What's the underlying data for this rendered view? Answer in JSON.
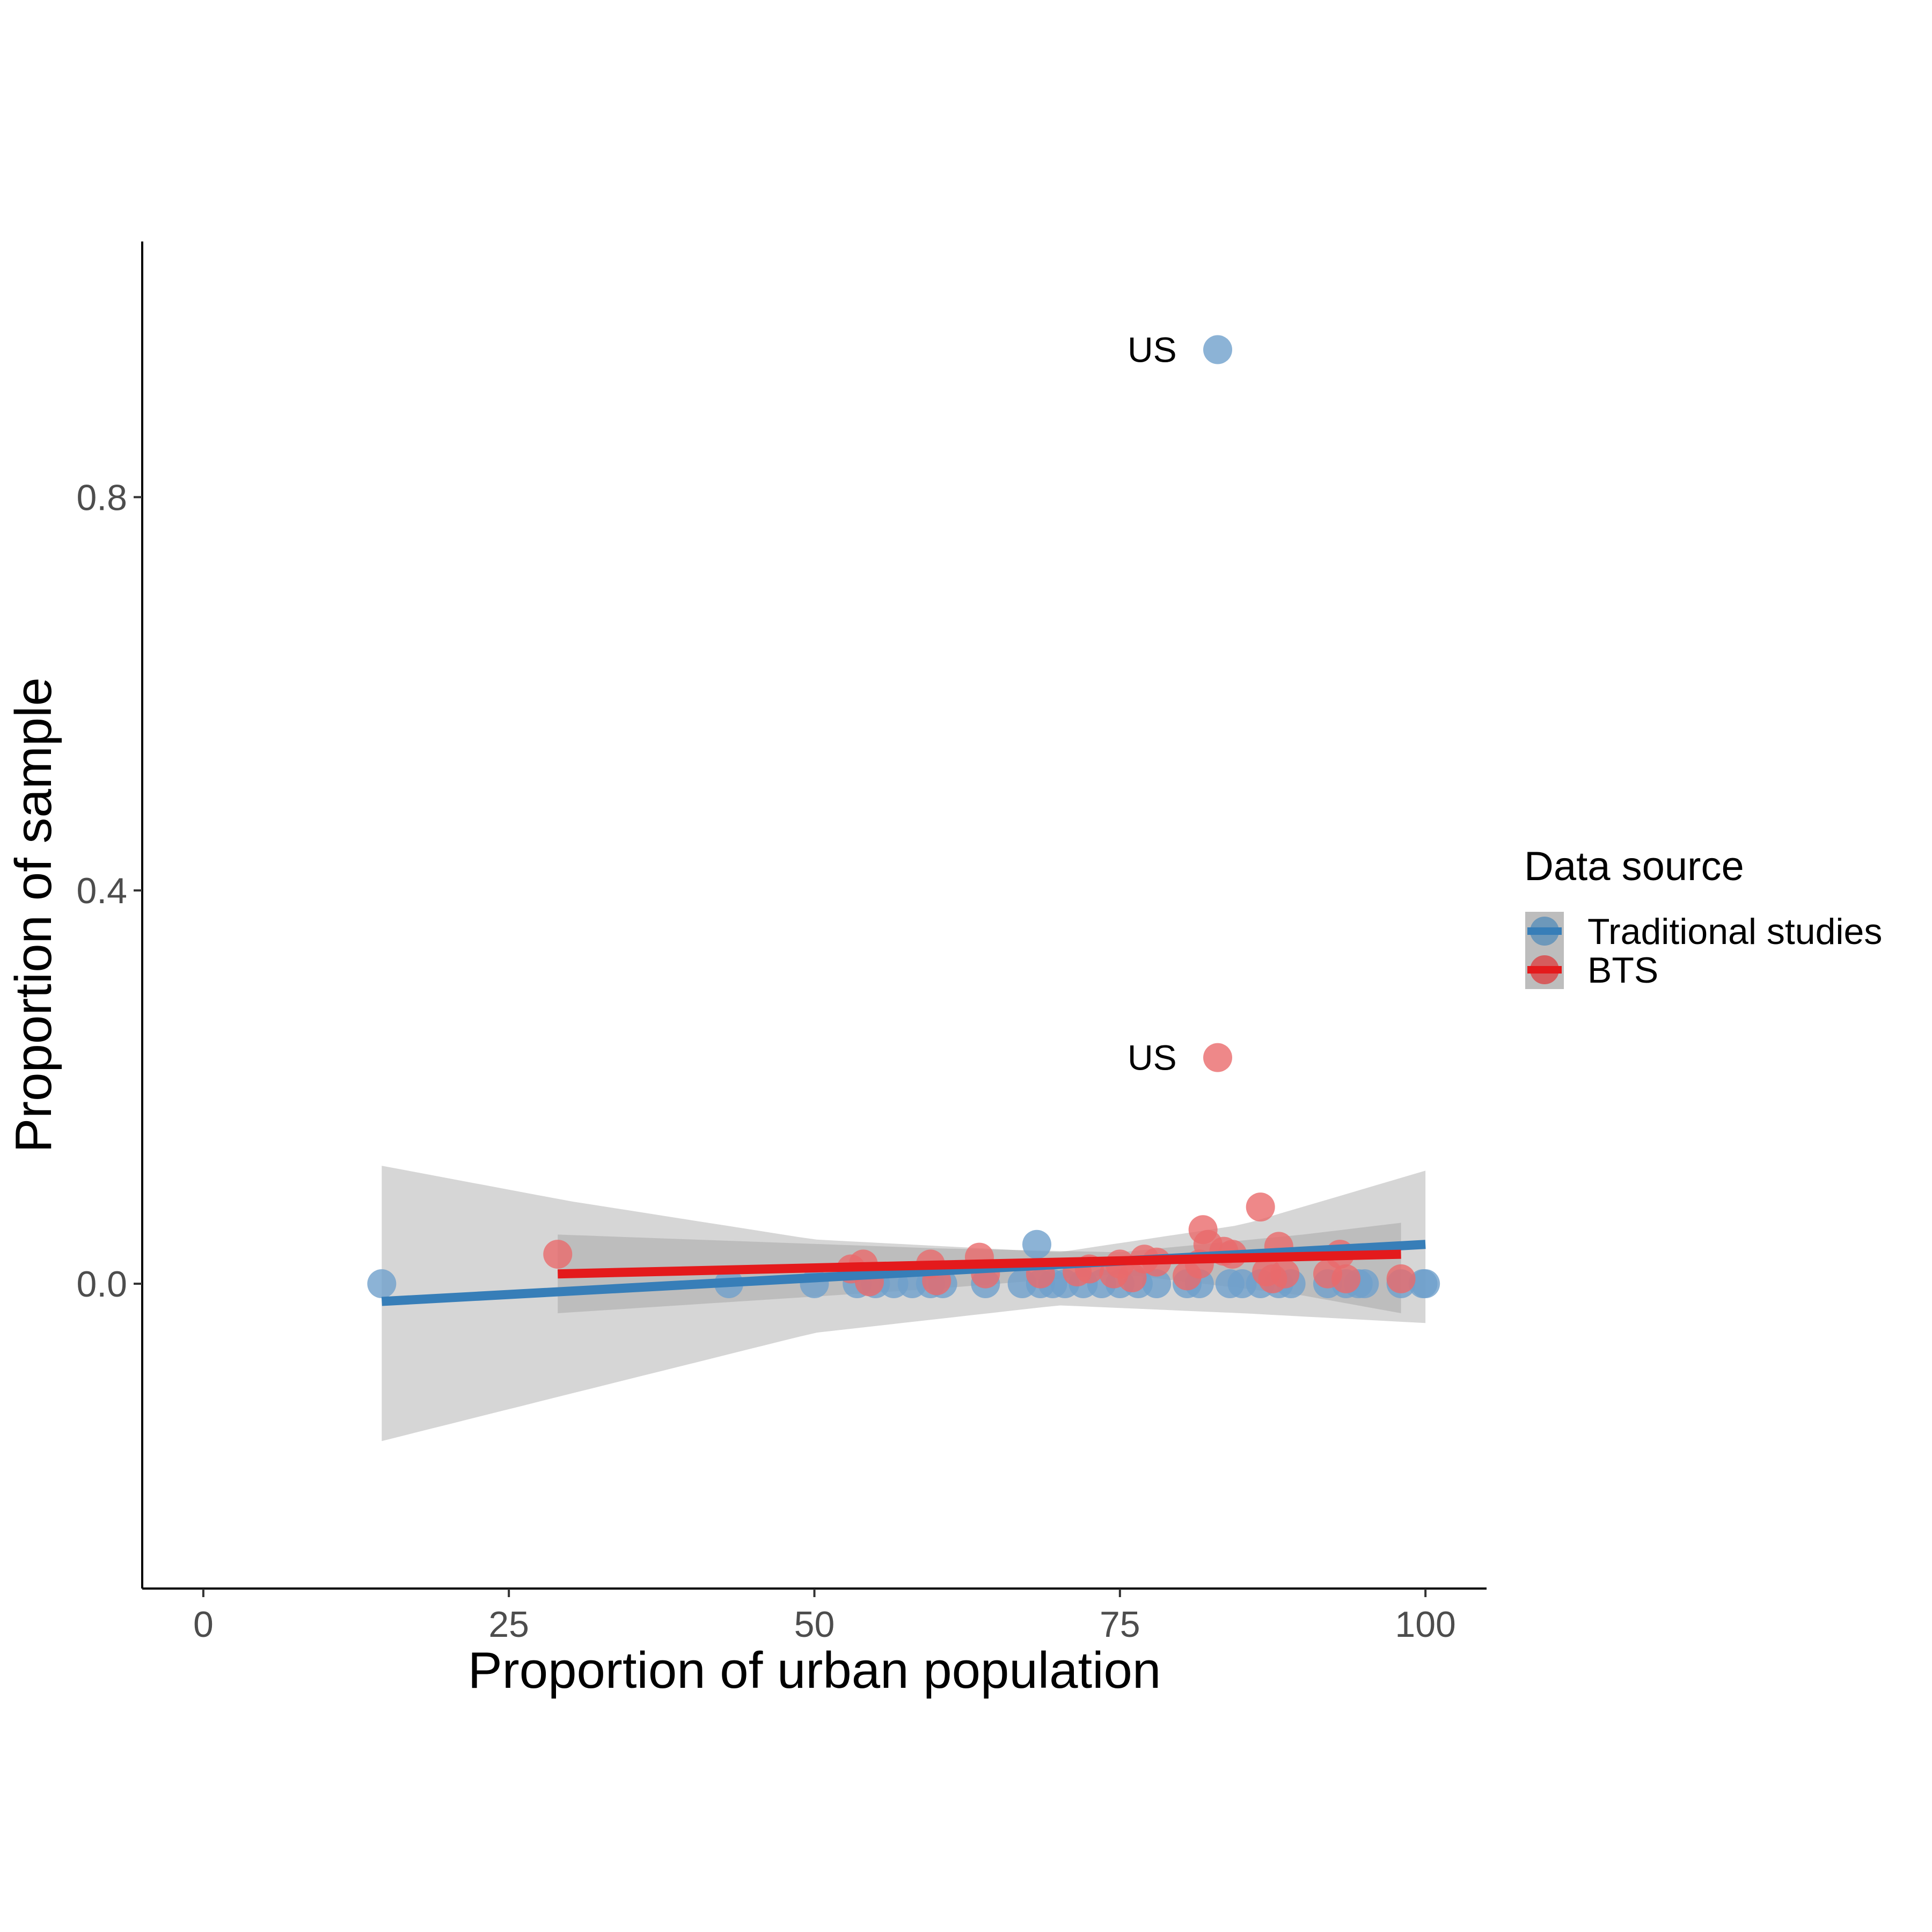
{
  "chart_data": {
    "type": "scatter",
    "title": "",
    "xlabel": "Proportion of urban population",
    "ylabel": "Proportion of sample",
    "xlim": [
      -5,
      105
    ],
    "ylim": [
      -0.31,
      1.06
    ],
    "x_ticks": [
      {
        "value": 0,
        "label": "0"
      },
      {
        "value": 25,
        "label": "25"
      },
      {
        "value": 50,
        "label": "50"
      },
      {
        "value": 75,
        "label": "75"
      },
      {
        "value": 100,
        "label": "100"
      }
    ],
    "y_ticks": [
      {
        "value": 0.0,
        "label": "0.0"
      },
      {
        "value": 0.4,
        "label": "0.4"
      },
      {
        "value": 0.8,
        "label": "0.8"
      }
    ],
    "grid": false,
    "legend": {
      "title": "Data source",
      "position": "right",
      "entries": [
        {
          "label": "Traditional studies",
          "color": "#377eb8"
        },
        {
          "label": "BTS",
          "color": "#e41a1c"
        }
      ]
    },
    "annotations": [
      {
        "text": "US",
        "x": 75,
        "y": 0.95
      },
      {
        "text": "US",
        "x": 75,
        "y": 0.23
      }
    ],
    "series": [
      {
        "name": "Traditional studies",
        "color": "#377eb8",
        "point_color": "#6fa0cc",
        "points": [
          [
            14.6,
            0.0
          ],
          [
            43,
            0.0
          ],
          [
            50,
            0.0
          ],
          [
            53.5,
            0.0
          ],
          [
            55,
            0.0
          ],
          [
            56.5,
            0.0
          ],
          [
            58,
            0.0
          ],
          [
            59.5,
            0.0
          ],
          [
            60.5,
            0.0
          ],
          [
            64,
            0.0
          ],
          [
            67,
            0.0
          ],
          [
            68.2,
            0.04
          ],
          [
            68.5,
            0.0
          ],
          [
            69.5,
            0.0
          ],
          [
            70.5,
            0.0
          ],
          [
            72,
            0.0
          ],
          [
            73.5,
            0.0
          ],
          [
            75,
            0.0
          ],
          [
            76.5,
            0.0
          ],
          [
            78,
            0.0
          ],
          [
            80.5,
            0.0
          ],
          [
            81.5,
            0.0
          ],
          [
            83,
            0.95
          ],
          [
            84,
            0.0
          ],
          [
            85,
            0.0
          ],
          [
            86.5,
            0.0
          ],
          [
            88,
            0.0
          ],
          [
            89,
            0.0
          ],
          [
            92,
            0.0
          ],
          [
            93.5,
            0.0
          ],
          [
            94.5,
            0.0
          ],
          [
            95,
            0.0
          ],
          [
            98,
            0.0
          ],
          [
            99.8,
            0.0
          ],
          [
            100,
            0.0
          ]
        ],
        "fit": {
          "x": [
            14.6,
            100
          ],
          "y": [
            -0.018,
            0.04
          ]
        },
        "band": {
          "x": [
            14.6,
            30,
            50,
            70,
            85,
            100
          ],
          "lower": [
            -0.16,
            -0.112,
            -0.05,
            -0.022,
            -0.03,
            -0.04
          ],
          "upper": [
            0.12,
            0.084,
            0.045,
            0.032,
            0.06,
            0.115
          ]
        }
      },
      {
        "name": "BTS",
        "color": "#e41a1c",
        "point_color": "#ea6a6c",
        "points": [
          [
            29,
            0.03
          ],
          [
            53,
            0.015
          ],
          [
            54,
            0.02
          ],
          [
            54.5,
            0.002
          ],
          [
            59.5,
            0.02
          ],
          [
            60,
            0.003
          ],
          [
            63.5,
            0.027
          ],
          [
            64,
            0.01
          ],
          [
            68.5,
            0.01
          ],
          [
            71.5,
            0.012
          ],
          [
            72.5,
            0.015
          ],
          [
            74.5,
            0.01
          ],
          [
            75,
            0.02
          ],
          [
            76,
            0.006
          ],
          [
            77,
            0.025
          ],
          [
            78,
            0.022
          ],
          [
            80.5,
            0.008
          ],
          [
            81.5,
            0.02
          ],
          [
            81.8,
            0.055
          ],
          [
            82.2,
            0.04
          ],
          [
            83,
            0.23
          ],
          [
            83.5,
            0.033
          ],
          [
            84.2,
            0.03
          ],
          [
            86.5,
            0.078
          ],
          [
            87,
            0.012
          ],
          [
            87.5,
            0.005
          ],
          [
            88,
            0.038
          ],
          [
            88.5,
            0.01
          ],
          [
            92,
            0.01
          ],
          [
            93,
            0.03
          ],
          [
            93.5,
            0.005
          ],
          [
            98,
            0.005
          ]
        ],
        "fit": {
          "x": [
            29,
            98
          ],
          "y": [
            0.01,
            0.03
          ]
        },
        "band": {
          "x": [
            29,
            60,
            75,
            90,
            98
          ],
          "lower": [
            -0.03,
            -0.005,
            0.01,
            -0.012,
            -0.03
          ],
          "upper": [
            0.05,
            0.036,
            0.032,
            0.05,
            0.062
          ]
        }
      }
    ]
  }
}
